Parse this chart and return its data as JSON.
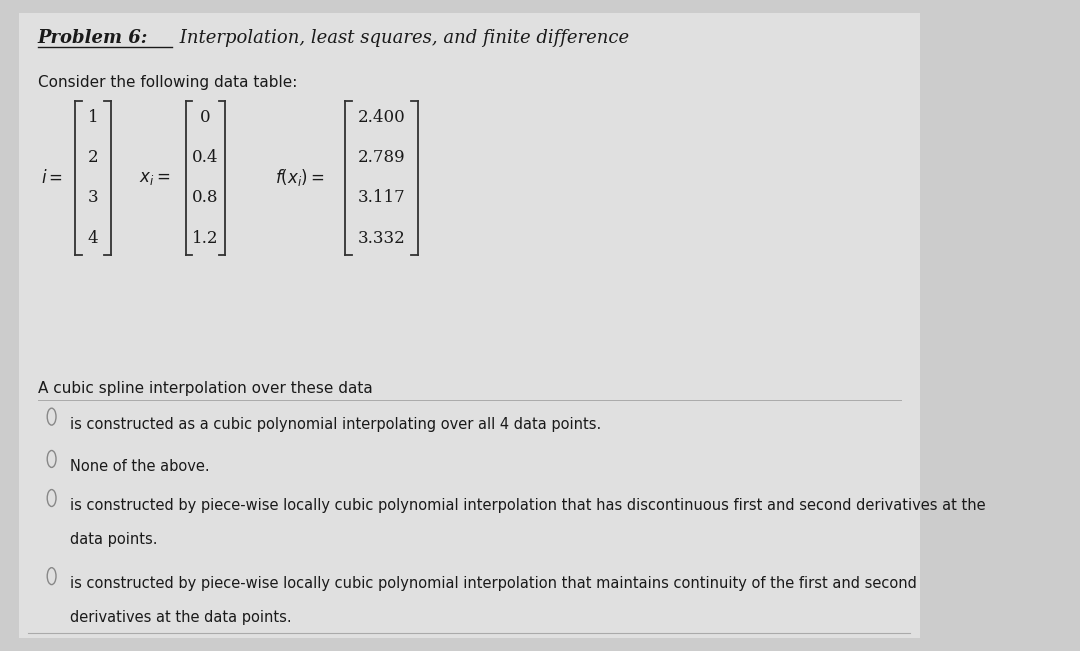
{
  "title_underlined": "Problem 6:",
  "title_rest": " Interpolation, least squares, and finite difference",
  "subtitle": "Consider the following data table:",
  "i_values": [
    "1",
    "2",
    "3",
    "4"
  ],
  "x_values": [
    "0",
    "0.4",
    "0.8",
    "1.2"
  ],
  "f_values": [
    "2.400",
    "2.789",
    "3.117",
    "3.332"
  ],
  "question_text": "A cubic spline interpolation over these data",
  "options": [
    "is constructed as a cubic polynomial interpolating over all 4 data points.",
    "None of the above.",
    "is constructed by piece-wise locally cubic polynomial interpolation that has discontinuous first and second derivatives at the\ndata points.",
    "is constructed by piece-wise locally cubic polynomial interpolation that maintains continuity of the first and second\nderivatives at the data points."
  ],
  "bg_color": "#cccccc",
  "panel_color": "#e0e0e0",
  "text_color": "#1a1a1a",
  "radio_color": "#888888",
  "bracket_color": "#333333",
  "title_fontsize": 13,
  "body_fontsize": 11,
  "matrix_fontsize": 12,
  "option_fontsize": 10.5
}
